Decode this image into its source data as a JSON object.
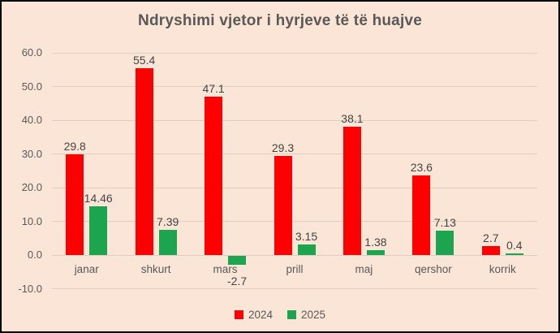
{
  "chart_data": {
    "type": "bar",
    "title": "Ndryshimi vjetor i hyrjeve të të huajve",
    "categories": [
      "janar",
      "shkurt",
      "mars",
      "prill",
      "maj",
      "qershor",
      "korrik"
    ],
    "series": [
      {
        "name": "2024",
        "color": "#ff0000",
        "values": [
          29.8,
          55.4,
          47.1,
          29.3,
          38.1,
          23.6,
          2.7
        ],
        "labels": [
          "29.8",
          "55.4",
          "47.1",
          "29.3",
          "38.1",
          "23.6",
          "2.7"
        ]
      },
      {
        "name": "2025",
        "color": "#1ca54e",
        "values": [
          14.46,
          7.39,
          -2.7,
          3.15,
          1.38,
          7.13,
          0.4
        ],
        "labels": [
          "14.46",
          "7.39",
          "-2.7",
          "3.15",
          "1.38",
          "7.13",
          "0.4"
        ]
      }
    ],
    "y_axis": {
      "min": -10,
      "max": 60,
      "step": 10,
      "tick_labels": [
        "60.0",
        "50.0",
        "40.0",
        "30.0",
        "20.0",
        "10.0",
        "0.0",
        "-10.0"
      ]
    },
    "grid": true,
    "legend_position": "bottom",
    "colors": {
      "background": "#fbe5d6",
      "gridline": "#decdc1",
      "axis_text": "#595959",
      "data_label_text": "#444444",
      "title_text": "#595959",
      "frame_border": "#000000"
    }
  }
}
